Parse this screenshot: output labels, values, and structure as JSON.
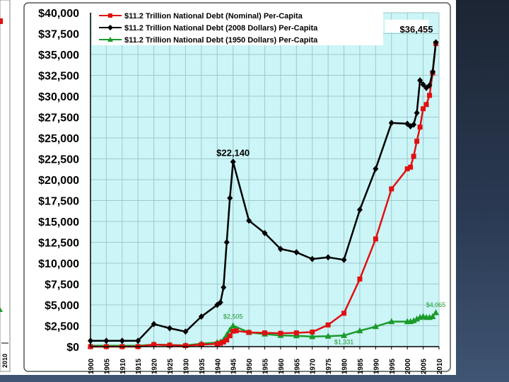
{
  "chart_data": {
    "type": "line",
    "title": "",
    "xlabel": "",
    "ylabel": "",
    "xlim": [
      1900,
      2010
    ],
    "ylim": [
      0,
      40000
    ],
    "grid": true,
    "legend_position": "top-left",
    "x_ticks": [
      "1900",
      "1905",
      "1910",
      "1915",
      "1920",
      "1925",
      "1930",
      "1935",
      "1940",
      "1945",
      "1950",
      "1955",
      "1960",
      "1965",
      "1970",
      "1975",
      "1980",
      "1985",
      "1990",
      "1995",
      "2000",
      "2005",
      "2010"
    ],
    "y_ticks": [
      "$0",
      "$2,500",
      "$5,000",
      "$7,500",
      "$10,000",
      "$12,500",
      "$15,000",
      "$17,500",
      "$20,000",
      "$22,500",
      "$25,000",
      "$27,500",
      "$30,000",
      "$32,500",
      "$35,000",
      "$37,500",
      "$40,000"
    ],
    "series": [
      {
        "name": "$11.2 Trillion National Debt (Nominal) Per-Capita",
        "color": "#e01010",
        "marker": "square",
        "points": [
          [
            1900,
            0
          ],
          [
            1905,
            0
          ],
          [
            1910,
            0
          ],
          [
            1915,
            0
          ],
          [
            1920,
            250
          ],
          [
            1925,
            180
          ],
          [
            1930,
            120
          ],
          [
            1935,
            250
          ],
          [
            1940,
            330
          ],
          [
            1941,
            400
          ],
          [
            1942,
            550
          ],
          [
            1943,
            800
          ],
          [
            1944,
            1300
          ],
          [
            1945,
            1850
          ],
          [
            1946,
            1900
          ],
          [
            1950,
            1700
          ],
          [
            1955,
            1650
          ],
          [
            1960,
            1600
          ],
          [
            1965,
            1650
          ],
          [
            1970,
            1750
          ],
          [
            1975,
            2600
          ],
          [
            1980,
            4000
          ],
          [
            1985,
            8100
          ],
          [
            1990,
            12900
          ],
          [
            1995,
            18900
          ],
          [
            2000,
            21300
          ],
          [
            2001,
            21500
          ],
          [
            2002,
            22800
          ],
          [
            2003,
            24600
          ],
          [
            2004,
            26300
          ],
          [
            2005,
            28500
          ],
          [
            2006,
            29000
          ],
          [
            2007,
            30100
          ],
          [
            2008,
            32800
          ],
          [
            2009,
            36300
          ]
        ]
      },
      {
        "name": "$11.2 Trillion National Debt (2008 Dollars) Per-Capita",
        "color": "#000000",
        "marker": "diamond",
        "points": [
          [
            1900,
            700
          ],
          [
            1905,
            700
          ],
          [
            1910,
            700
          ],
          [
            1915,
            700
          ],
          [
            1920,
            2700
          ],
          [
            1925,
            2200
          ],
          [
            1930,
            1800
          ],
          [
            1935,
            3600
          ],
          [
            1940,
            5000
          ],
          [
            1941,
            5300
          ],
          [
            1942,
            7100
          ],
          [
            1943,
            12500
          ],
          [
            1944,
            17800
          ],
          [
            1945,
            22140
          ],
          [
            1950,
            15100
          ],
          [
            1955,
            13600
          ],
          [
            1960,
            11700
          ],
          [
            1965,
            11300
          ],
          [
            1970,
            10500
          ],
          [
            1975,
            10700
          ],
          [
            1980,
            10400
          ],
          [
            1985,
            16400
          ],
          [
            1990,
            21300
          ],
          [
            1995,
            26800
          ],
          [
            2000,
            26700
          ],
          [
            2001,
            26400
          ],
          [
            2002,
            26600
          ],
          [
            2003,
            28000
          ],
          [
            2004,
            31900
          ],
          [
            2005,
            31400
          ],
          [
            2006,
            31000
          ],
          [
            2007,
            31300
          ],
          [
            2008,
            32900
          ],
          [
            2009,
            36455
          ]
        ]
      },
      {
        "name": "$11.2 Trillion National Debt (1950 Dollars) Per-Capita",
        "color": "#1a9a2a",
        "marker": "triangle",
        "points": [
          [
            1900,
            100
          ],
          [
            1905,
            100
          ],
          [
            1910,
            100
          ],
          [
            1915,
            100
          ],
          [
            1920,
            250
          ],
          [
            1925,
            200
          ],
          [
            1930,
            150
          ],
          [
            1935,
            350
          ],
          [
            1940,
            500
          ],
          [
            1941,
            550
          ],
          [
            1942,
            800
          ],
          [
            1943,
            1400
          ],
          [
            1944,
            2000
          ],
          [
            1945,
            2505
          ],
          [
            1950,
            1700
          ],
          [
            1955,
            1500
          ],
          [
            1960,
            1350
          ],
          [
            1965,
            1300
          ],
          [
            1970,
            1200
          ],
          [
            1975,
            1250
          ],
          [
            1980,
            1331
          ],
          [
            1985,
            1900
          ],
          [
            1990,
            2400
          ],
          [
            1995,
            3000
          ],
          [
            2000,
            3000
          ],
          [
            2001,
            3000
          ],
          [
            2002,
            3100
          ],
          [
            2003,
            3300
          ],
          [
            2004,
            3500
          ],
          [
            2005,
            3600
          ],
          [
            2006,
            3500
          ],
          [
            2007,
            3500
          ],
          [
            2008,
            3600
          ],
          [
            2009,
            4065
          ]
        ]
      }
    ],
    "annotations": [
      {
        "text": "$36,455",
        "x": 2009,
        "y": 36455,
        "color": "#000000"
      },
      {
        "text": "$22,140",
        "x": 1945,
        "y": 22140,
        "color": "#000000"
      },
      {
        "text": "$2,505",
        "x": 1945,
        "y": 2505,
        "color": "#1a9a2a"
      },
      {
        "text": "$1,331",
        "x": 1980,
        "y": 1331,
        "color": "#1a9a2a"
      },
      {
        "text": "$4,065",
        "x": 2009,
        "y": 4065,
        "color": "#1a9a2a"
      }
    ]
  },
  "left_edge_fragment": {
    "axis_label": "2010"
  }
}
